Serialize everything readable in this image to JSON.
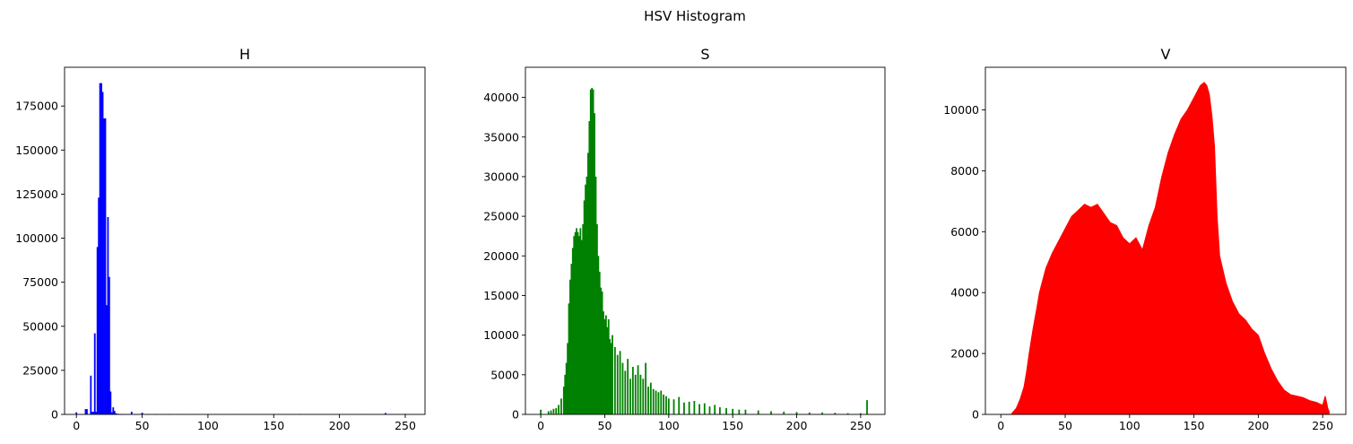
{
  "figure": {
    "title": "HSV Histogram"
  },
  "chart_data": [
    {
      "type": "bar",
      "title": "H",
      "xlabel": "",
      "ylabel": "",
      "color": "#0000ff",
      "xlim": [
        -9,
        265
      ],
      "ylim": [
        0,
        197000
      ],
      "xticks": [
        0,
        50,
        100,
        150,
        200,
        250
      ],
      "yticks": [
        0,
        25000,
        50000,
        75000,
        100000,
        125000,
        150000,
        175000
      ],
      "grid": false,
      "x": [
        0,
        7,
        8,
        11,
        12,
        13,
        14,
        15,
        16,
        17,
        18,
        19,
        20,
        21,
        22,
        23,
        24,
        25,
        26,
        27,
        28,
        29,
        30,
        31,
        32,
        33,
        34,
        35,
        36,
        38,
        40,
        42,
        45,
        50,
        55,
        60,
        70,
        80,
        90,
        100,
        120,
        150,
        170,
        200,
        220,
        235,
        240,
        250
      ],
      "values": [
        1200,
        3000,
        3000,
        22000,
        1500,
        1500,
        46000,
        1500,
        95000,
        123000,
        188000,
        188000,
        183000,
        168000,
        168000,
        62000,
        112000,
        78000,
        13000,
        1200,
        4000,
        2000,
        600,
        400,
        300,
        200,
        200,
        100,
        200,
        100,
        100,
        1500,
        200,
        1000,
        200,
        100,
        200,
        100,
        100,
        100,
        100,
        100,
        100,
        100,
        100,
        800,
        100,
        300
      ]
    },
    {
      "type": "bar",
      "title": "S",
      "xlabel": "",
      "ylabel": "",
      "color": "#008000",
      "xlim": [
        -12,
        269
      ],
      "ylim": [
        0,
        43800
      ],
      "xticks": [
        0,
        50,
        100,
        150,
        200,
        250
      ],
      "yticks": [
        0,
        5000,
        10000,
        15000,
        20000,
        25000,
        30000,
        35000,
        40000
      ],
      "grid": false,
      "x": [
        0,
        6,
        8,
        10,
        12,
        14,
        16,
        18,
        19,
        20,
        21,
        22,
        23,
        24,
        25,
        26,
        27,
        28,
        29,
        30,
        31,
        32,
        33,
        34,
        35,
        36,
        37,
        38,
        39,
        40,
        41,
        42,
        43,
        44,
        45,
        46,
        47,
        48,
        49,
        50,
        51,
        52,
        53,
        54,
        55,
        56,
        58,
        60,
        62,
        64,
        66,
        68,
        70,
        72,
        74,
        76,
        78,
        80,
        82,
        84,
        86,
        88,
        90,
        92,
        94,
        96,
        98,
        100,
        104,
        108,
        112,
        116,
        120,
        124,
        128,
        132,
        136,
        140,
        145,
        150,
        155,
        160,
        170,
        180,
        190,
        200,
        210,
        220,
        230,
        240,
        250,
        255
      ],
      "values": [
        600,
        400,
        500,
        700,
        800,
        1200,
        2000,
        3500,
        5000,
        6500,
        9000,
        14000,
        17000,
        19000,
        21000,
        22500,
        23000,
        23500,
        23000,
        22500,
        23500,
        22000,
        24000,
        27000,
        29000,
        30000,
        33000,
        37000,
        41000,
        41200,
        41000,
        38000,
        30000,
        24000,
        20000,
        18000,
        16000,
        15500,
        13000,
        12000,
        12500,
        11000,
        12000,
        9500,
        9000,
        10000,
        8500,
        7500,
        8000,
        6500,
        5500,
        7000,
        4500,
        6000,
        5000,
        6200,
        5000,
        4500,
        6500,
        3500,
        4000,
        3200,
        3000,
        2800,
        3000,
        2500,
        2300,
        2000,
        1900,
        2200,
        1500,
        1600,
        1700,
        1300,
        1400,
        1000,
        1200,
        900,
        800,
        700,
        600,
        600,
        500,
        400,
        350,
        300,
        250,
        250,
        200,
        150,
        150,
        1800
      ]
    },
    {
      "type": "area",
      "title": "V",
      "xlabel": "",
      "ylabel": "",
      "color": "#ff0000",
      "xlim": [
        -12,
        268
      ],
      "ylim": [
        0,
        11400
      ],
      "xticks": [
        0,
        50,
        100,
        150,
        200,
        250
      ],
      "yticks": [
        0,
        2000,
        4000,
        6000,
        8000,
        10000
      ],
      "grid": false,
      "x": [
        0,
        8,
        10,
        12,
        15,
        18,
        20,
        22,
        25,
        28,
        30,
        35,
        40,
        45,
        50,
        55,
        60,
        65,
        70,
        75,
        80,
        85,
        90,
        95,
        100,
        105,
        110,
        115,
        120,
        125,
        130,
        135,
        140,
        145,
        150,
        155,
        158,
        160,
        162,
        164,
        166,
        168,
        170,
        175,
        180,
        185,
        190,
        195,
        200,
        205,
        210,
        215,
        220,
        225,
        230,
        235,
        240,
        245,
        250,
        252,
        254,
        255
      ],
      "values": [
        0,
        0,
        100,
        200,
        500,
        900,
        1400,
        2000,
        2800,
        3500,
        4000,
        4800,
        5300,
        5700,
        6100,
        6500,
        6700,
        6900,
        6800,
        6900,
        6600,
        6300,
        6200,
        5800,
        5600,
        5800,
        5400,
        6200,
        6800,
        7800,
        8600,
        9200,
        9700,
        10000,
        10400,
        10800,
        10900,
        10800,
        10500,
        9800,
        8800,
        6500,
        5200,
        4300,
        3700,
        3300,
        3100,
        2800,
        2600,
        2000,
        1500,
        1100,
        800,
        650,
        600,
        550,
        450,
        400,
        300,
        600,
        200,
        100
      ]
    }
  ]
}
